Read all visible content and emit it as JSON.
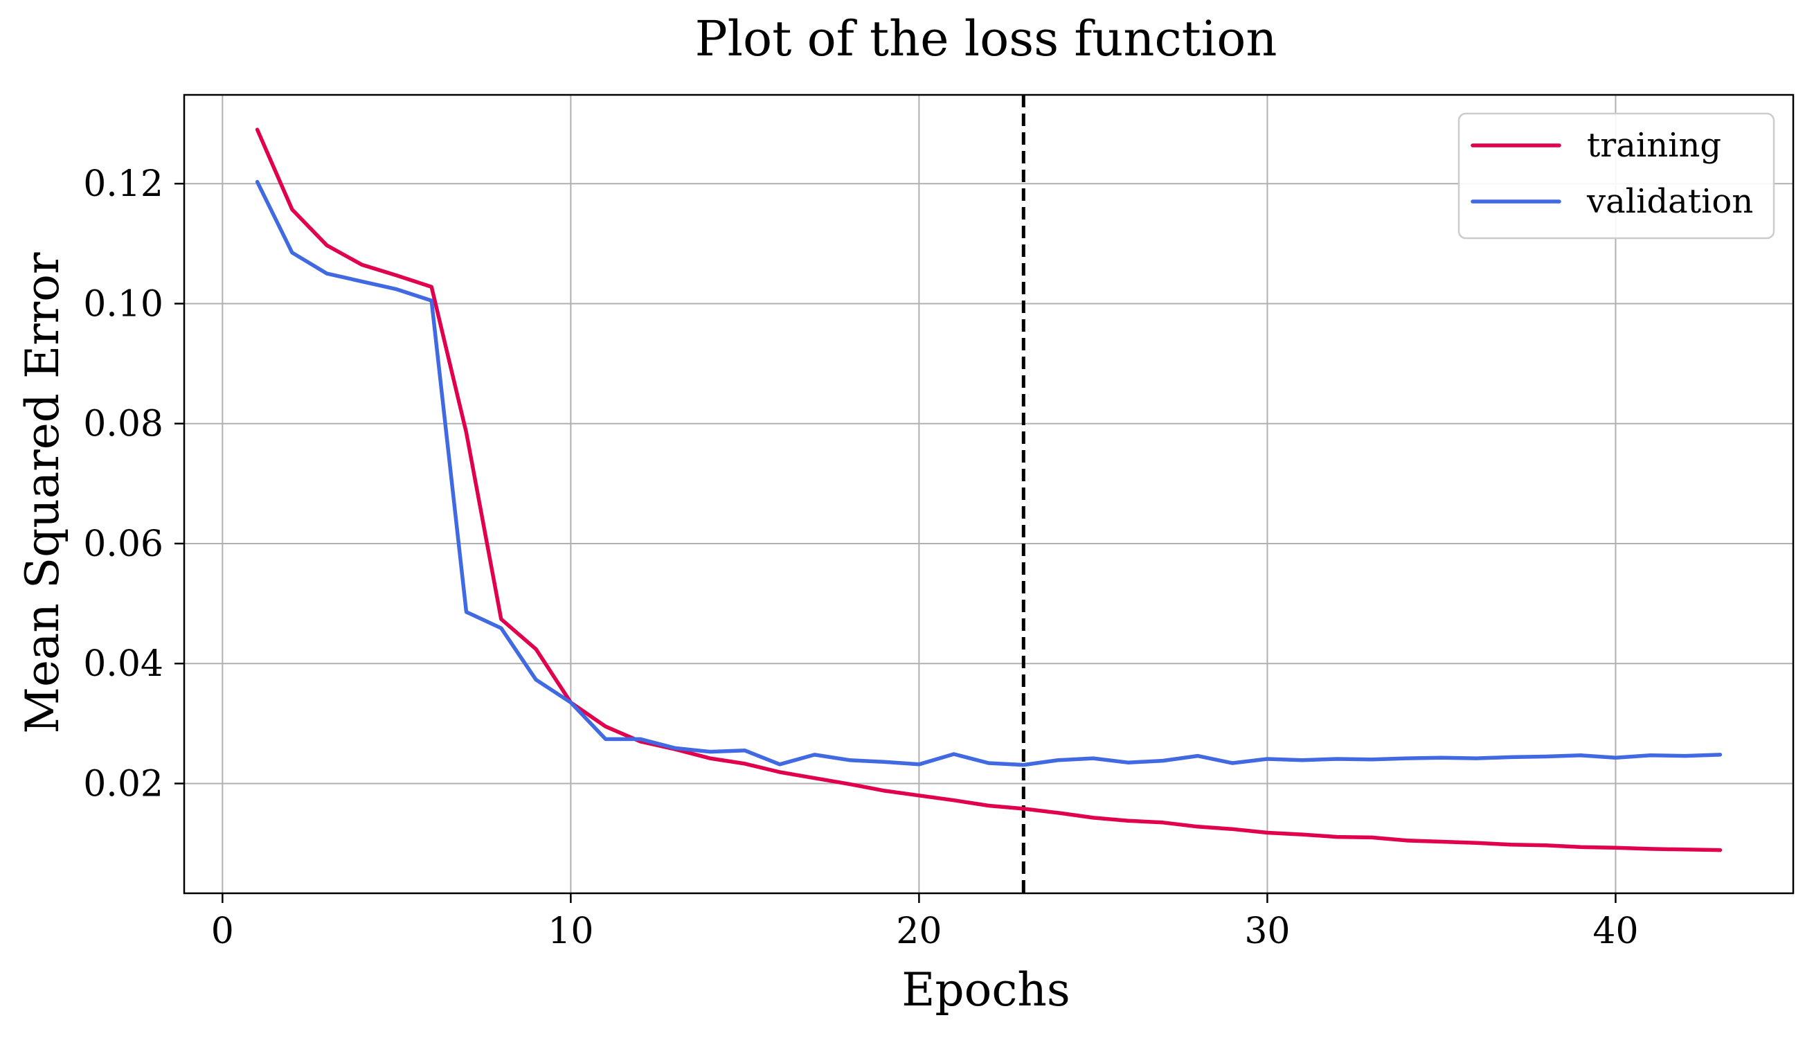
{
  "chart_data": {
    "type": "line",
    "title": "Plot of the loss function",
    "xlabel": "Epochs",
    "ylabel": "Mean Squared Error",
    "xlim": [
      -1.1,
      45.1
    ],
    "ylim": [
      0.0017,
      0.1348
    ],
    "xticks": [
      0,
      10,
      20,
      30,
      40
    ],
    "yticks": [
      0.02,
      0.04,
      0.06,
      0.08,
      0.1,
      0.12
    ],
    "xtick_labels": [
      "0",
      "10",
      "20",
      "30",
      "40"
    ],
    "ytick_labels": [
      "0.02",
      "0.04",
      "0.06",
      "0.08",
      "0.10",
      "0.12"
    ],
    "grid": true,
    "legend_position": "top-right",
    "vline": {
      "x": 23,
      "color": "#000000",
      "style": "dashed"
    },
    "x": [
      1,
      2,
      3,
      4,
      5,
      6,
      7,
      8,
      9,
      10,
      11,
      12,
      13,
      14,
      15,
      16,
      17,
      18,
      19,
      20,
      21,
      22,
      23,
      24,
      25,
      26,
      27,
      28,
      29,
      30,
      31,
      32,
      33,
      34,
      35,
      36,
      37,
      38,
      39,
      40,
      41,
      42,
      43
    ],
    "series": [
      {
        "name": "training",
        "color": "#E0004D",
        "values": [
          0.129,
          0.1157,
          0.1097,
          0.1065,
          0.1047,
          0.1028,
          0.0785,
          0.0474,
          0.0424,
          0.0335,
          0.0295,
          0.027,
          0.0257,
          0.0242,
          0.0233,
          0.0219,
          0.0209,
          0.0199,
          0.0188,
          0.018,
          0.0172,
          0.0163,
          0.0158,
          0.0151,
          0.0143,
          0.0138,
          0.0135,
          0.0128,
          0.0124,
          0.0118,
          0.0115,
          0.0111,
          0.011,
          0.0105,
          0.0103,
          0.0101,
          0.0098,
          0.0097,
          0.0094,
          0.0093,
          0.0091,
          0.009,
          0.0089
        ]
      },
      {
        "name": "validation",
        "color": "#4169E1",
        "values": [
          0.1203,
          0.1085,
          0.105,
          0.1037,
          0.1024,
          0.1005,
          0.0486,
          0.0459,
          0.0373,
          0.0335,
          0.0274,
          0.0274,
          0.0259,
          0.0253,
          0.0255,
          0.0232,
          0.0248,
          0.0239,
          0.0236,
          0.0232,
          0.0249,
          0.0234,
          0.0231,
          0.0239,
          0.0242,
          0.0235,
          0.0238,
          0.0246,
          0.0234,
          0.0241,
          0.0239,
          0.0241,
          0.024,
          0.0242,
          0.0243,
          0.0242,
          0.0244,
          0.0245,
          0.0247,
          0.0243,
          0.0247,
          0.0246,
          0.0248
        ]
      }
    ]
  }
}
